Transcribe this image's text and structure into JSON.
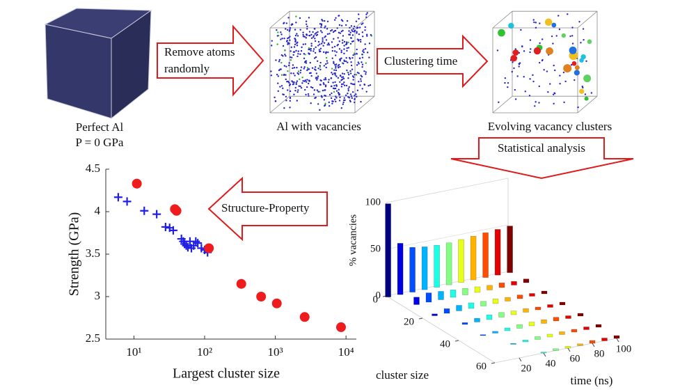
{
  "steps": [
    {
      "label": "Perfect Al",
      "sublabel": "P = 0 GPa"
    },
    {
      "label": "Al with vacancies"
    },
    {
      "label": "Evolving vacancy clusters"
    }
  ],
  "arrows": [
    {
      "lines": [
        "Remove atoms",
        "randomly"
      ]
    },
    {
      "lines": [
        "Clustering time"
      ]
    },
    {
      "lines": [
        "Statistical analysis"
      ]
    },
    {
      "lines": [
        "Structure-Property"
      ]
    }
  ],
  "chart_data": [
    {
      "type": "scatter",
      "xlabel": "Largest cluster size",
      "ylabel": "Strength (GPa)",
      "xscale": "log",
      "xlim": [
        4,
        14000
      ],
      "ylim": [
        2.5,
        4.5
      ],
      "xticks": [
        {
          "value": 10,
          "label": "10¹"
        },
        {
          "value": 100,
          "label": "10²"
        },
        {
          "value": 1000,
          "label": "10³"
        },
        {
          "value": 10000,
          "label": "10⁴"
        }
      ],
      "yticks": [
        2.5,
        3,
        3.5,
        4,
        4.5
      ],
      "series": [
        {
          "marker": "plus",
          "color": "#1f1fe6",
          "x": [
            6,
            8,
            14,
            21,
            28,
            32,
            36,
            47,
            50,
            52,
            55,
            58,
            62,
            65,
            70,
            75,
            80,
            90,
            100,
            110
          ],
          "values": [
            4.17,
            4.12,
            4.01,
            3.97,
            3.82,
            3.81,
            3.78,
            3.68,
            3.65,
            3.62,
            3.6,
            3.58,
            3.65,
            3.57,
            3.6,
            3.65,
            3.63,
            3.57,
            3.55,
            3.52
          ]
        },
        {
          "marker": "circle",
          "color": "#ee1c1c",
          "x": [
            11,
            38,
            40,
            115,
            330,
            630,
            1050,
            2600,
            8500
          ],
          "values": [
            4.33,
            4.03,
            4.01,
            3.57,
            3.15,
            3.0,
            2.92,
            2.76,
            2.64
          ]
        }
      ]
    },
    {
      "type": "bar3d",
      "zlabel": "% vacancies",
      "ylabel": "cluster size",
      "xlabel": "time (ns)",
      "xlim": [
        0,
        100
      ],
      "xticks": [
        20,
        40,
        60,
        80,
        100
      ],
      "ylim": [
        0,
        60
      ],
      "yticks": [
        0,
        20,
        40,
        60
      ],
      "zlim": [
        0,
        100
      ],
      "zticks": [
        0,
        50,
        100
      ],
      "x": [
        0,
        10,
        20,
        30,
        40,
        50,
        60,
        70,
        80,
        90,
        100
      ],
      "y": [
        1,
        10,
        20,
        30,
        40,
        50,
        60
      ],
      "values": [
        [
          100,
          55,
          48,
          46,
          45,
          45,
          46,
          47,
          48,
          49,
          50
        ],
        [
          0,
          8,
          10,
          9,
          8,
          7,
          6,
          5,
          5,
          4,
          4
        ],
        [
          0,
          2,
          5,
          6,
          6,
          5,
          5,
          4,
          4,
          3,
          3
        ],
        [
          0,
          0,
          2,
          4,
          5,
          5,
          4,
          4,
          3,
          3,
          3
        ],
        [
          0,
          0,
          1,
          2,
          3,
          4,
          4,
          4,
          4,
          3,
          3
        ],
        [
          0,
          0,
          0,
          1,
          2,
          3,
          3,
          3,
          3,
          3,
          3
        ],
        [
          0,
          0,
          0,
          0,
          1,
          2,
          2,
          2,
          3,
          3,
          3
        ]
      ]
    }
  ]
}
